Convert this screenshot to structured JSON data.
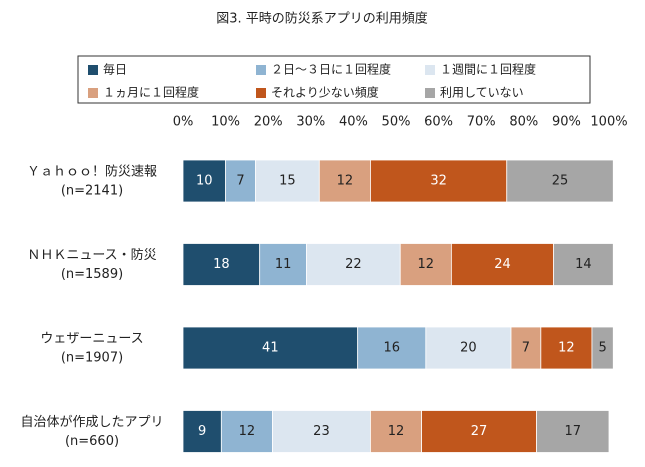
{
  "chart_data": {
    "type": "stacked-barh",
    "title": "図3. 平時の防災系アプリの利用頻度",
    "categories": [
      "Ｙａｈｏｏ！防災速報",
      "ＮＨＫニュース・防災",
      "ウェザーニュース",
      "自治体が作成したアプリ"
    ],
    "category_notes": [
      "(n=2141)",
      "(n=1589)",
      "(n=1907)",
      "(n=660)"
    ],
    "series": [
      {
        "name": "毎日",
        "color": "#1f4e6e",
        "label_color": "#ffffff",
        "values": [
          10,
          18,
          41,
          9
        ]
      },
      {
        "name": "２日～３日に１回程度",
        "color": "#8fb4d2",
        "label_color": "#222222",
        "values": [
          7,
          11,
          16,
          12
        ]
      },
      {
        "name": "１週間に１回程度",
        "color": "#dce6f0",
        "label_color": "#222222",
        "values": [
          15,
          22,
          20,
          23
        ]
      },
      {
        "name": "１ヵ月に１回程度",
        "color": "#d9a07f",
        "label_color": "#222222",
        "values": [
          12,
          12,
          7,
          12
        ]
      },
      {
        "name": "それより少ない頻度",
        "color": "#c0561c",
        "label_color": "#ffffff",
        "values": [
          32,
          24,
          12,
          27
        ]
      },
      {
        "name": "利用していない",
        "color": "#a6a6a6",
        "label_color": "#222222",
        "values": [
          25,
          14,
          5,
          17
        ]
      }
    ],
    "xlim": [
      0,
      100
    ],
    "xticks": [
      {
        "value": 0,
        "label": "0%"
      },
      {
        "value": 10,
        "label": "10%"
      },
      {
        "value": 20,
        "label": "20%"
      },
      {
        "value": 30,
        "label": "30%"
      },
      {
        "value": 40,
        "label": "40%"
      },
      {
        "value": 50,
        "label": "50%"
      },
      {
        "value": 60,
        "label": "60%"
      },
      {
        "value": 70,
        "label": "70%"
      },
      {
        "value": 80,
        "label": "80%"
      },
      {
        "value": 90,
        "label": "90%"
      },
      {
        "value": 100,
        "label": "100%"
      }
    ],
    "legend": "top"
  }
}
